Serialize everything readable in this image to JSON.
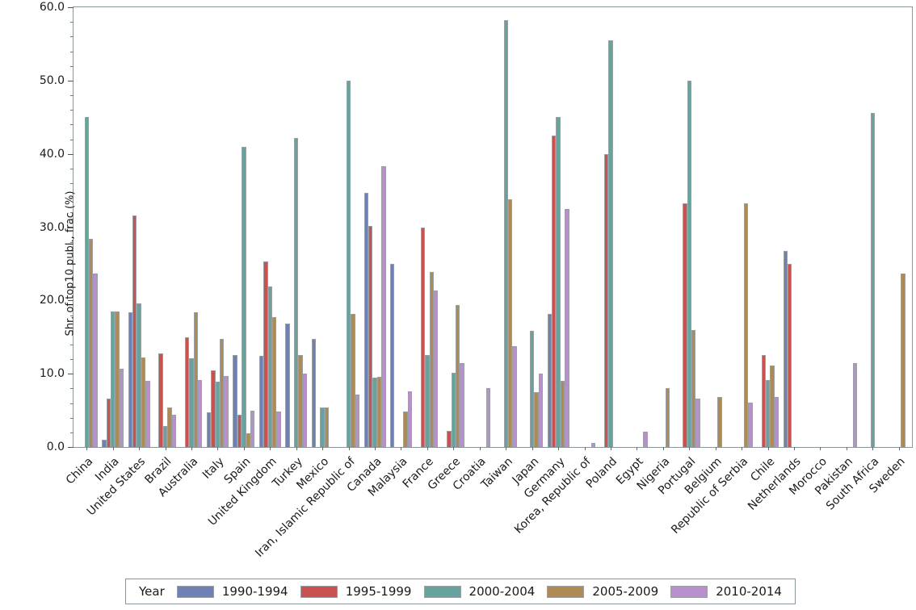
{
  "figure": {
    "y_axis_title": "Shr. of top10 publ., frac (%)",
    "legend_title": "Year"
  },
  "chart_data": {
    "type": "bar",
    "title": "",
    "xlabel": "",
    "ylabel": "Shr. of top10 publ., frac (%)",
    "ylim": [
      0,
      60
    ],
    "ytick_labels": [
      "0.0",
      "10.0",
      "20.0",
      "30.0",
      "40.0",
      "50.0",
      "60.0"
    ],
    "ytick_values": [
      0,
      10,
      20,
      30,
      40,
      50,
      60
    ],
    "minor_tick_step": 2,
    "grid": false,
    "legend_position": "bottom-center",
    "legend_title": "Year",
    "categories": [
      "China",
      "India",
      "United States",
      "Brazil",
      "Australia",
      "Italy",
      "Spain",
      "United Kingdom",
      "Turkey",
      "Mexico",
      "Iran, Islamic Republic of",
      "Canada",
      "Malaysia",
      "France",
      "Greece",
      "Croatia",
      "Taiwan",
      "Japan",
      "Germany",
      "Korea, Republic of",
      "Poland",
      "Egypt",
      "Nigeria",
      "Portugal",
      "Belgium",
      "Republic of Serbia",
      "Chile",
      "Netherlands",
      "Morocco",
      "Pakistan",
      "South Africa",
      "Sweden"
    ],
    "series": [
      {
        "name": "1990-1994",
        "color": "#6F80B5",
        "values": [
          null,
          1.0,
          18.4,
          null,
          null,
          4.7,
          12.5,
          12.4,
          16.8,
          14.8,
          null,
          34.7,
          25.0,
          null,
          null,
          null,
          null,
          null,
          18.2,
          null,
          null,
          null,
          null,
          null,
          null,
          null,
          null,
          26.7,
          null,
          null,
          null,
          null
        ]
      },
      {
        "name": "1995-1999",
        "color": "#C9514F",
        "values": [
          null,
          6.6,
          31.6,
          12.8,
          15.0,
          10.5,
          4.4,
          25.3,
          null,
          null,
          null,
          30.2,
          null,
          29.9,
          2.2,
          null,
          null,
          null,
          42.5,
          null,
          40.0,
          null,
          null,
          33.2,
          null,
          null,
          12.5,
          25.0,
          null,
          null,
          null,
          null
        ]
      },
      {
        "name": "2000-2004",
        "color": "#67A39D",
        "values": [
          45.0,
          18.5,
          19.6,
          2.9,
          12.1,
          8.9,
          41.0,
          21.9,
          42.2,
          5.4,
          50.0,
          9.5,
          null,
          12.6,
          10.1,
          null,
          58.2,
          15.8,
          45.0,
          null,
          55.5,
          null,
          null,
          50.0,
          null,
          null,
          9.1,
          null,
          null,
          null,
          45.6,
          null
        ]
      },
      {
        "name": "2005-2009",
        "color": "#AE8A55",
        "values": [
          28.4,
          18.5,
          12.2,
          5.4,
          18.4,
          14.7,
          1.9,
          17.7,
          12.5,
          5.4,
          18.2,
          9.6,
          4.8,
          23.9,
          19.4,
          null,
          33.8,
          7.5,
          9.0,
          null,
          null,
          null,
          8.0,
          16.0,
          6.8,
          33.2,
          11.1,
          null,
          null,
          null,
          null,
          23.7
        ]
      },
      {
        "name": "2010-2014",
        "color": "#B691CC",
        "values": [
          23.7,
          10.7,
          9.0,
          4.4,
          9.1,
          9.7,
          5.0,
          4.9,
          10.0,
          null,
          7.2,
          38.3,
          7.6,
          21.4,
          11.4,
          8.0,
          13.8,
          10.0,
          32.5,
          0.5,
          null,
          2.1,
          null,
          6.6,
          null,
          6.1,
          6.8,
          null,
          null,
          11.4,
          null,
          null
        ]
      }
    ]
  }
}
